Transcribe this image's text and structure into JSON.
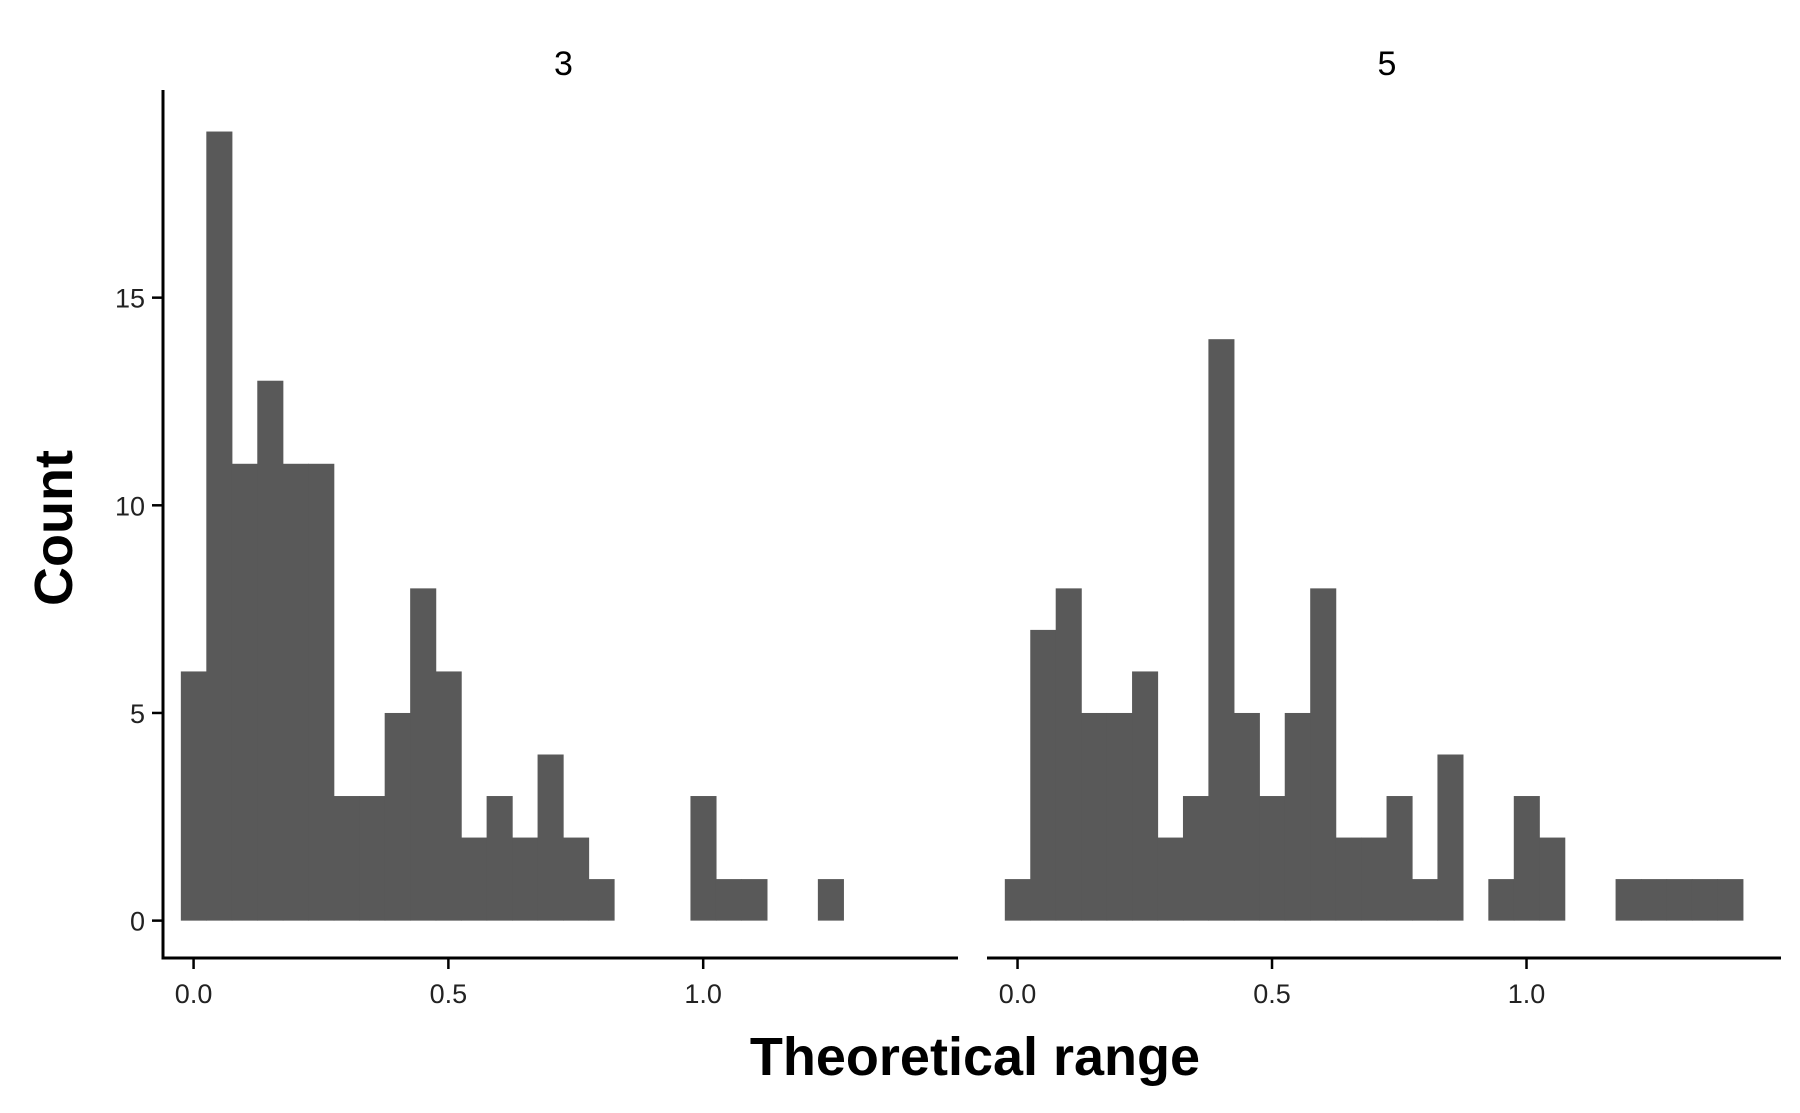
{
  "chart_data": {
    "type": "bar",
    "xlabel": "Theoretical range",
    "ylabel": "Count",
    "bin_width": 0.05,
    "xlim": [
      -0.06,
      1.5
    ],
    "ylim": [
      -0.9,
      20
    ],
    "x_ticks": [
      0.0,
      0.5,
      1.0
    ],
    "x_tick_labels": [
      "0.0",
      "0.5",
      "1.0"
    ],
    "y_ticks": [
      0,
      5,
      10,
      15
    ],
    "y_tick_labels": [
      "0",
      "5",
      "10",
      "15"
    ],
    "bar_color": "#595959",
    "grid": false,
    "panels": [
      {
        "label": "3",
        "bins": [
          {
            "x": 0.0,
            "count": 6
          },
          {
            "x": 0.05,
            "count": 19
          },
          {
            "x": 0.1,
            "count": 11
          },
          {
            "x": 0.15,
            "count": 13
          },
          {
            "x": 0.2,
            "count": 11
          },
          {
            "x": 0.25,
            "count": 11
          },
          {
            "x": 0.3,
            "count": 3
          },
          {
            "x": 0.35,
            "count": 3
          },
          {
            "x": 0.4,
            "count": 5
          },
          {
            "x": 0.45,
            "count": 8
          },
          {
            "x": 0.5,
            "count": 6
          },
          {
            "x": 0.55,
            "count": 2
          },
          {
            "x": 0.6,
            "count": 3
          },
          {
            "x": 0.65,
            "count": 2
          },
          {
            "x": 0.7,
            "count": 4
          },
          {
            "x": 0.75,
            "count": 2
          },
          {
            "x": 0.8,
            "count": 1
          },
          {
            "x": 1.0,
            "count": 3
          },
          {
            "x": 1.05,
            "count": 1
          },
          {
            "x": 1.1,
            "count": 1
          },
          {
            "x": 1.25,
            "count": 1
          }
        ]
      },
      {
        "label": "5",
        "bins": [
          {
            "x": 0.0,
            "count": 1
          },
          {
            "x": 0.05,
            "count": 7
          },
          {
            "x": 0.1,
            "count": 8
          },
          {
            "x": 0.15,
            "count": 5
          },
          {
            "x": 0.2,
            "count": 5
          },
          {
            "x": 0.25,
            "count": 6
          },
          {
            "x": 0.3,
            "count": 2
          },
          {
            "x": 0.35,
            "count": 3
          },
          {
            "x": 0.4,
            "count": 14
          },
          {
            "x": 0.45,
            "count": 5
          },
          {
            "x": 0.5,
            "count": 3
          },
          {
            "x": 0.55,
            "count": 5
          },
          {
            "x": 0.6,
            "count": 8
          },
          {
            "x": 0.65,
            "count": 2
          },
          {
            "x": 0.7,
            "count": 2
          },
          {
            "x": 0.75,
            "count": 3
          },
          {
            "x": 0.8,
            "count": 1
          },
          {
            "x": 0.85,
            "count": 4
          },
          {
            "x": 0.95,
            "count": 1
          },
          {
            "x": 1.0,
            "count": 3
          },
          {
            "x": 1.05,
            "count": 2
          },
          {
            "x": 1.2,
            "count": 1
          },
          {
            "x": 1.25,
            "count": 1
          },
          {
            "x": 1.3,
            "count": 1
          },
          {
            "x": 1.35,
            "count": 1
          },
          {
            "x": 1.4,
            "count": 1
          }
        ]
      }
    ]
  }
}
